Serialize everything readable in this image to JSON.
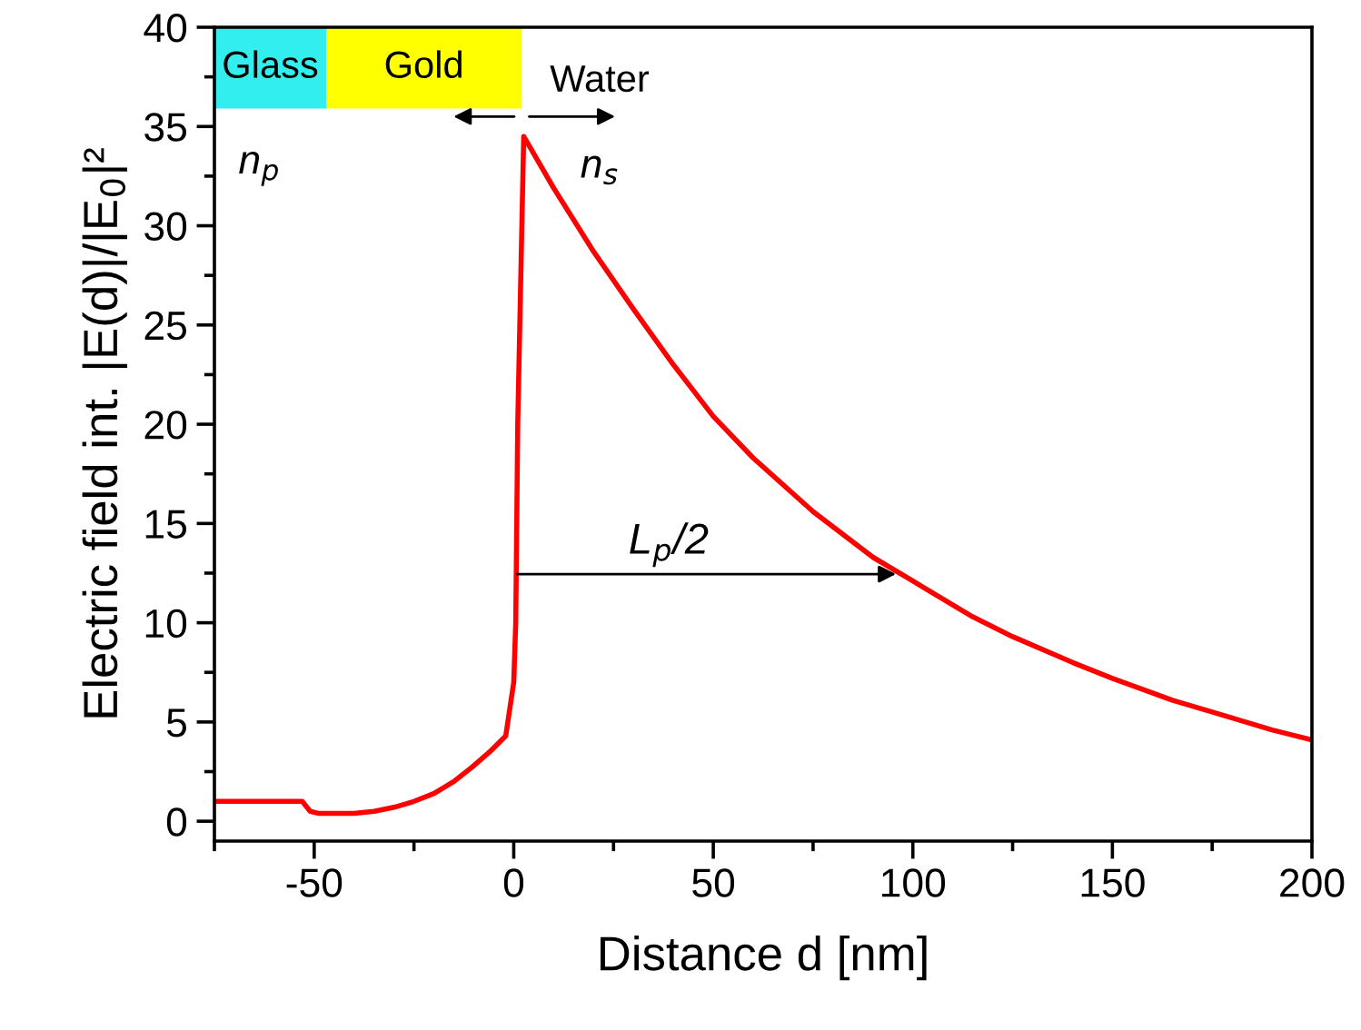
{
  "chart_data": {
    "type": "line",
    "xlabel": "Distance d [nm]",
    "ylabel": "Electric field int. |E(d)|/|E$_{0}$|²",
    "xlim": [
      -75,
      200
    ],
    "ylim": [
      -1,
      40
    ],
    "xticks": [
      -50,
      0,
      50,
      100,
      150,
      200
    ],
    "yticks": [
      0,
      5,
      10,
      15,
      20,
      25,
      30,
      35,
      40
    ],
    "grid": false,
    "legend": false,
    "marker": "none",
    "line_style": "solid",
    "series": [
      {
        "color": "#ff0000",
        "x": [
          -75,
          -60,
          -53,
          -51,
          -49,
          -45,
          -40,
          -35,
          -30,
          -25,
          -20,
          -15,
          -10,
          -6,
          -2,
          0,
          0.5,
          1,
          2.5,
          10,
          20,
          30,
          40,
          50,
          60,
          75,
          90,
          100,
          115,
          125,
          140,
          150,
          165,
          175,
          190,
          200
        ],
        "values": [
          1.0,
          1.0,
          1.0,
          0.5,
          0.4,
          0.4,
          0.4,
          0.5,
          0.7,
          1.0,
          1.4,
          2.0,
          2.8,
          3.5,
          4.3,
          7,
          10,
          20,
          34.5,
          31.9,
          28.7,
          25.8,
          23.0,
          20.4,
          18.3,
          15.6,
          13.3,
          12.1,
          10.3,
          9.3,
          8.0,
          7.2,
          6.1,
          5.5,
          4.6,
          4.1
        ]
      }
    ],
    "bands": [
      {
        "axis": "x",
        "from": -75,
        "to": -47,
        "label": "Glass",
        "color": "#33eeee"
      },
      {
        "axis": "x",
        "from": -47,
        "to": 2,
        "label": "Gold",
        "color": "#ffff00"
      }
    ],
    "annotations": [
      {
        "text": "Water",
        "x": 2,
        "y": 35.5
      },
      "n$_{p}$",
      "n$_{s}$",
      "L$_{p}$/2"
    ]
  }
}
